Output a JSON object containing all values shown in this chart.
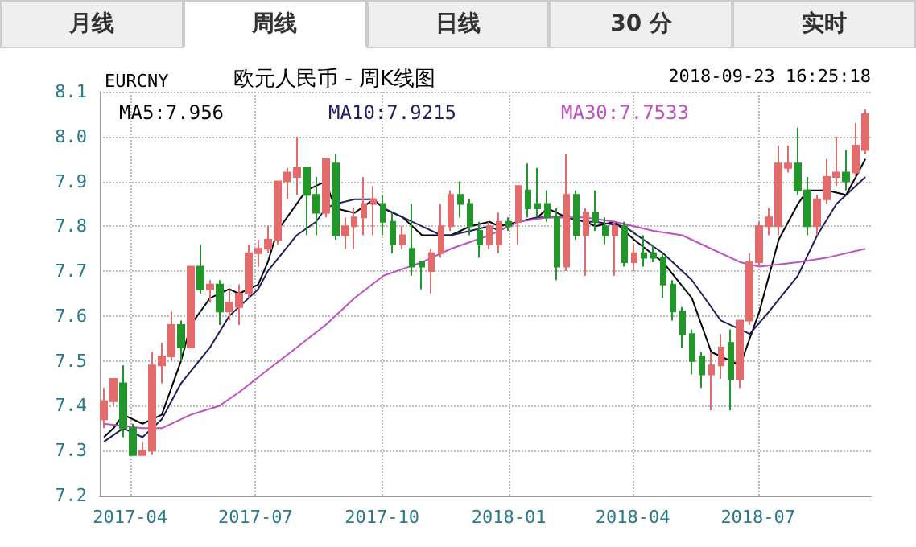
{
  "chart_data": {
    "type": "candlestick",
    "title": "欧元人民币 - 周K线图",
    "subtitle": "EURCNY",
    "annotations": [
      "月线",
      "周线",
      "日线",
      "30 分",
      "实时",
      "2018-09-23 16:25:18"
    ],
    "x": [
      "2017-03-13",
      "2017-03-20",
      "2017-03-27",
      "2017-04-03",
      "2017-04-10",
      "2017-04-17",
      "2017-04-24",
      "2017-05-01",
      "2017-05-08",
      "2017-05-15",
      "2017-05-22",
      "2017-05-29",
      "2017-06-05",
      "2017-06-12",
      "2017-06-19",
      "2017-06-26",
      "2017-07-03",
      "2017-07-10",
      "2017-07-17",
      "2017-07-24",
      "2017-07-31",
      "2017-08-07",
      "2017-08-14",
      "2017-08-21",
      "2017-08-28",
      "2017-09-04",
      "2017-09-11",
      "2017-09-18",
      "2017-09-25",
      "2017-10-02",
      "2017-10-09",
      "2017-10-16",
      "2017-10-23",
      "2017-10-30",
      "2017-11-06",
      "2017-11-13",
      "2017-11-20",
      "2017-11-27",
      "2017-12-04",
      "2017-12-11",
      "2017-12-18",
      "2017-12-25",
      "2018-01-01",
      "2018-01-08",
      "2018-01-15",
      "2018-01-22",
      "2018-01-29",
      "2018-02-05",
      "2018-02-12",
      "2018-02-19",
      "2018-02-26",
      "2018-03-05",
      "2018-03-12",
      "2018-03-19",
      "2018-03-26",
      "2018-04-02",
      "2018-04-09",
      "2018-04-16",
      "2018-04-23",
      "2018-04-30",
      "2018-05-07",
      "2018-05-14",
      "2018-05-21",
      "2018-05-28",
      "2018-06-04",
      "2018-06-11",
      "2018-06-18",
      "2018-06-25",
      "2018-07-02",
      "2018-07-09",
      "2018-07-16",
      "2018-07-23",
      "2018-07-30",
      "2018-08-06",
      "2018-08-13",
      "2018-08-20",
      "2018-08-27",
      "2018-09-03",
      "2018-09-10",
      "2018-09-17"
    ],
    "ohlc": [
      [
        7.37,
        7.44,
        7.35,
        7.41
      ],
      [
        7.41,
        7.46,
        7.4,
        7.46
      ],
      [
        7.45,
        7.49,
        7.33,
        7.35
      ],
      [
        7.35,
        7.36,
        7.29,
        7.29
      ],
      [
        7.29,
        7.32,
        7.29,
        7.3
      ],
      [
        7.3,
        7.52,
        7.29,
        7.49
      ],
      [
        7.49,
        7.54,
        7.45,
        7.51
      ],
      [
        7.51,
        7.61,
        7.5,
        7.58
      ],
      [
        7.58,
        7.59,
        7.5,
        7.53
      ],
      [
        7.53,
        7.71,
        7.53,
        7.71
      ],
      [
        7.71,
        7.76,
        7.65,
        7.66
      ],
      [
        7.66,
        7.68,
        7.63,
        7.67
      ],
      [
        7.67,
        7.68,
        7.58,
        7.61
      ],
      [
        7.61,
        7.66,
        7.59,
        7.63
      ],
      [
        7.62,
        7.67,
        7.58,
        7.65
      ],
      [
        7.65,
        7.76,
        7.64,
        7.74
      ],
      [
        7.74,
        7.77,
        7.71,
        7.75
      ],
      [
        7.75,
        7.8,
        7.74,
        7.77
      ],
      [
        7.77,
        7.9,
        7.76,
        7.9
      ],
      [
        7.9,
        7.93,
        7.86,
        7.92
      ],
      [
        7.91,
        8.0,
        7.87,
        7.93
      ],
      [
        7.93,
        7.93,
        7.78,
        7.87
      ],
      [
        7.87,
        7.91,
        7.78,
        7.83
      ],
      [
        7.83,
        7.95,
        7.82,
        7.95
      ],
      [
        7.94,
        7.96,
        7.77,
        7.78
      ],
      [
        7.78,
        7.82,
        7.75,
        7.8
      ],
      [
        7.8,
        7.84,
        7.75,
        7.82
      ],
      [
        7.82,
        7.91,
        7.78,
        7.85
      ],
      [
        7.85,
        7.89,
        7.78,
        7.86
      ],
      [
        7.85,
        7.87,
        7.78,
        7.81
      ],
      [
        7.81,
        7.83,
        7.74,
        7.76
      ],
      [
        7.76,
        7.8,
        7.75,
        7.78
      ],
      [
        7.75,
        7.85,
        7.69,
        7.71
      ],
      [
        7.72,
        7.72,
        7.66,
        7.71
      ],
      [
        7.7,
        7.75,
        7.65,
        7.74
      ],
      [
        7.74,
        7.85,
        7.73,
        7.8
      ],
      [
        7.8,
        7.88,
        7.79,
        7.87
      ],
      [
        7.87,
        7.9,
        7.82,
        7.85
      ],
      [
        7.85,
        7.86,
        7.78,
        7.8
      ],
      [
        7.79,
        7.81,
        7.73,
        7.76
      ],
      [
        7.76,
        7.81,
        7.75,
        7.8
      ],
      [
        7.76,
        7.83,
        7.74,
        7.81
      ],
      [
        7.81,
        7.82,
        7.79,
        7.8
      ],
      [
        7.81,
        7.89,
        7.76,
        7.89
      ],
      [
        7.88,
        7.94,
        7.82,
        7.84
      ],
      [
        7.85,
        7.93,
        7.82,
        7.84
      ],
      [
        7.85,
        7.88,
        7.81,
        7.82
      ],
      [
        7.82,
        7.84,
        7.68,
        7.71
      ],
      [
        7.71,
        7.96,
        7.7,
        7.87
      ],
      [
        7.87,
        7.88,
        7.77,
        7.78
      ],
      [
        7.78,
        7.84,
        7.69,
        7.83
      ],
      [
        7.83,
        7.88,
        7.79,
        7.81
      ],
      [
        7.8,
        7.82,
        7.76,
        7.78
      ],
      [
        7.78,
        7.81,
        7.69,
        7.8
      ],
      [
        7.8,
        7.81,
        7.71,
        7.72
      ],
      [
        7.72,
        7.76,
        7.7,
        7.74
      ],
      [
        7.74,
        7.78,
        7.71,
        7.73
      ],
      [
        7.74,
        7.76,
        7.72,
        7.73
      ],
      [
        7.73,
        7.74,
        7.64,
        7.67
      ],
      [
        7.67,
        7.68,
        7.59,
        7.61
      ],
      [
        7.61,
        7.62,
        7.53,
        7.56
      ],
      [
        7.56,
        7.57,
        7.47,
        7.5
      ],
      [
        7.51,
        7.52,
        7.44,
        7.47
      ],
      [
        7.47,
        7.52,
        7.39,
        7.49
      ],
      [
        7.49,
        7.56,
        7.46,
        7.53
      ],
      [
        7.54,
        7.57,
        7.39,
        7.46
      ],
      [
        7.46,
        7.59,
        7.44,
        7.59
      ],
      [
        7.59,
        7.74,
        7.58,
        7.72
      ],
      [
        7.72,
        7.81,
        7.71,
        7.8
      ],
      [
        7.8,
        7.84,
        7.78,
        7.82
      ],
      [
        7.8,
        7.98,
        7.78,
        7.94
      ],
      [
        7.93,
        7.98,
        7.92,
        7.94
      ],
      [
        7.94,
        8.02,
        7.87,
        7.88
      ],
      [
        7.88,
        7.91,
        7.78,
        7.8
      ],
      [
        7.8,
        7.87,
        7.78,
        7.86
      ],
      [
        7.86,
        7.95,
        7.85,
        7.91
      ],
      [
        7.91,
        8.0,
        7.89,
        7.92
      ],
      [
        7.92,
        7.97,
        7.88,
        7.9
      ],
      [
        7.92,
        8.03,
        7.91,
        7.98
      ],
      [
        7.97,
        8.06,
        7.96,
        8.05
      ]
    ],
    "colors": [
      "#e36b6b",
      "#e36b6b",
      "#22962a",
      "#22962a",
      "#e36b6b",
      "#e36b6b",
      "#e36b6b",
      "#e36b6b",
      "#22962a",
      "#e36b6b",
      "#22962a",
      "#e36b6b",
      "#22962a",
      "#e36b6b",
      "#e36b6b",
      "#e36b6b",
      "#e36b6b",
      "#e36b6b",
      "#e36b6b",
      "#e36b6b",
      "#e36b6b",
      "#22962a",
      "#22962a",
      "#e36b6b",
      "#22962a",
      "#e36b6b",
      "#e36b6b",
      "#e36b6b",
      "#e36b6b",
      "#22962a",
      "#22962a",
      "#e36b6b",
      "#22962a",
      "#22962a",
      "#e36b6b",
      "#e36b6b",
      "#e36b6b",
      "#22962a",
      "#22962a",
      "#22962a",
      "#e36b6b",
      "#e36b6b",
      "#22962a",
      "#e36b6b",
      "#22962a",
      "#22962a",
      "#22962a",
      "#22962a",
      "#e36b6b",
      "#22962a",
      "#e36b6b",
      "#22962a",
      "#22962a",
      "#e36b6b",
      "#22962a",
      "#e36b6b",
      "#22962a",
      "#22962a",
      "#22962a",
      "#22962a",
      "#22962a",
      "#22962a",
      "#22962a",
      "#e36b6b",
      "#e36b6b",
      "#22962a",
      "#e36b6b",
      "#e36b6b",
      "#e36b6b",
      "#e36b6b",
      "#e36b6b",
      "#e36b6b",
      "#22962a",
      "#22962a",
      "#e36b6b",
      "#e36b6b",
      "#e36b6b",
      "#22962a",
      "#e36b6b",
      "#e36b6b"
    ],
    "series": [
      {
        "type": "line",
        "name": "MA5:7.956",
        "color": "#000000",
        "x": [
          "2017-03-13",
          "2017-03-20",
          "2017-03-27",
          "2017-04-10",
          "2017-04-24",
          "2017-05-08",
          "2017-05-15",
          "2017-05-29",
          "2017-06-12",
          "2017-06-19",
          "2017-07-03",
          "2017-07-10",
          "2017-07-17",
          "2017-07-31",
          "2017-08-07",
          "2017-08-21",
          "2017-08-28",
          "2017-09-11",
          "2017-09-25",
          "2017-10-02",
          "2017-10-16",
          "2017-10-30",
          "2017-11-13",
          "2017-11-20",
          "2017-12-04",
          "2017-12-18",
          "2017-12-25",
          "2018-01-08",
          "2018-01-22",
          "2018-01-29",
          "2018-02-12",
          "2018-02-26",
          "2018-03-05",
          "2018-03-19",
          "2018-04-02",
          "2018-04-23",
          "2018-05-14",
          "2018-05-28",
          "2018-06-18",
          "2018-07-02",
          "2018-07-16",
          "2018-07-30",
          "2018-08-06",
          "2018-08-20",
          "2018-09-03",
          "2018-09-17"
        ],
        "values": [
          7.33,
          7.35,
          7.38,
          7.36,
          7.38,
          7.5,
          7.58,
          7.64,
          7.66,
          7.65,
          7.67,
          7.72,
          7.79,
          7.85,
          7.88,
          7.9,
          7.84,
          7.83,
          7.86,
          7.84,
          7.82,
          7.78,
          7.78,
          7.78,
          7.8,
          7.81,
          7.8,
          7.81,
          7.82,
          7.84,
          7.82,
          7.81,
          7.8,
          7.81,
          7.77,
          7.72,
          7.64,
          7.52,
          7.49,
          7.61,
          7.77,
          7.85,
          7.88,
          7.88,
          7.87,
          7.95
        ]
      },
      {
        "type": "line",
        "name": "MA10:7.9215",
        "color": "#1f1f5f",
        "x": [
          "2017-03-13",
          "2017-03-27",
          "2017-04-10",
          "2017-04-24",
          "2017-05-08",
          "2017-05-29",
          "2017-06-12",
          "2017-07-03",
          "2017-07-10",
          "2017-07-31",
          "2017-08-14",
          "2017-08-21",
          "2017-08-28",
          "2017-09-11",
          "2017-09-25",
          "2017-10-02",
          "2017-10-16",
          "2017-10-30",
          "2017-11-13",
          "2017-11-20",
          "2017-12-04",
          "2017-12-18",
          "2017-12-25",
          "2018-01-08",
          "2018-01-22",
          "2018-01-29",
          "2018-02-12",
          "2018-02-26",
          "2018-03-05",
          "2018-03-26",
          "2018-04-23",
          "2018-05-14",
          "2018-06-04",
          "2018-06-25",
          "2018-07-09",
          "2018-07-30",
          "2018-08-13",
          "2018-08-27",
          "2018-09-17"
        ],
        "values": [
          7.32,
          7.35,
          7.33,
          7.37,
          7.45,
          7.53,
          7.6,
          7.66,
          7.7,
          7.78,
          7.81,
          7.84,
          7.85,
          7.86,
          7.86,
          7.84,
          7.82,
          7.8,
          7.78,
          7.78,
          7.79,
          7.8,
          7.79,
          7.81,
          7.82,
          7.82,
          7.82,
          7.81,
          7.81,
          7.8,
          7.74,
          7.68,
          7.59,
          7.56,
          7.61,
          7.69,
          7.78,
          7.85,
          7.91
        ]
      },
      {
        "type": "line",
        "name": "MA30:7.7533",
        "color": "#c050c0",
        "x": [
          "2017-03-13",
          "2017-04-10",
          "2017-04-24",
          "2017-05-15",
          "2017-06-05",
          "2017-06-19",
          "2017-07-10",
          "2017-07-31",
          "2017-08-21",
          "2017-09-11",
          "2017-10-02",
          "2017-10-30",
          "2017-11-20",
          "2017-12-18",
          "2018-01-08",
          "2018-01-29",
          "2018-02-26",
          "2018-03-19",
          "2018-04-16",
          "2018-05-07",
          "2018-05-28",
          "2018-06-18",
          "2018-07-02",
          "2018-07-30",
          "2018-08-20",
          "2018-09-17"
        ],
        "values": [
          7.36,
          7.35,
          7.35,
          7.38,
          7.4,
          7.43,
          7.48,
          7.53,
          7.58,
          7.64,
          7.69,
          7.72,
          7.75,
          7.78,
          7.81,
          7.82,
          7.82,
          7.81,
          7.79,
          7.78,
          7.75,
          7.72,
          7.71,
          7.72,
          7.73,
          7.75
        ]
      }
    ],
    "xlim": [
      "2017-03-10",
      "2018-09-21"
    ],
    "xticks": [
      "2017-04",
      "2017-07",
      "2017-10",
      "2018-01",
      "2018-04",
      "2018-07"
    ],
    "ylim": [
      7.2,
      8.1
    ],
    "yticks": [
      7.2,
      7.3,
      7.4,
      7.5,
      7.6,
      7.7,
      7.8,
      7.9,
      {
        "value": 8,
        "label": "8.0"
      },
      8.1
    ],
    "grid": true,
    "legend": "top left",
    "marker": "none",
    "line_style": "solid"
  }
}
